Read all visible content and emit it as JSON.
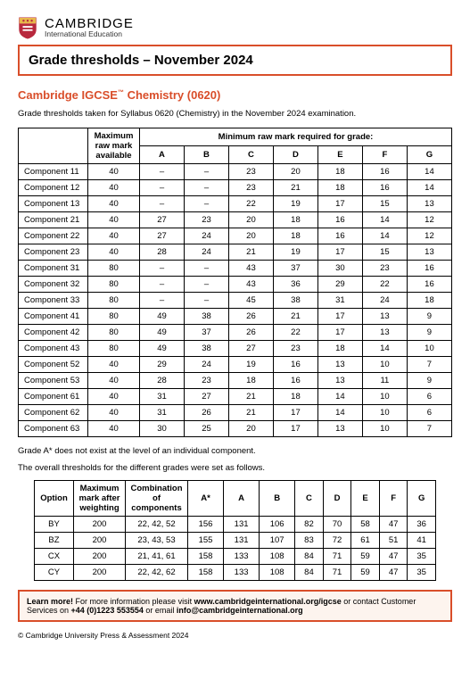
{
  "logo": {
    "main": "CAMBRIDGE",
    "sub": "International Education"
  },
  "title": "Grade thresholds – November 2024",
  "subject": {
    "prefix": "Cambridge IGCSE",
    "tm": "™",
    "name": " Chemistry (0620)"
  },
  "intro": "Grade thresholds taken for Syllabus 0620 (Chemistry) in the November 2024 examination.",
  "table1": {
    "spanHeader": "Minimum raw mark required for grade:",
    "maxHeader": "Maximum raw mark available",
    "gradeCols": [
      "A",
      "B",
      "C",
      "D",
      "E",
      "F",
      "G"
    ],
    "rows": [
      {
        "name": "Component 11",
        "max": 40,
        "v": [
          "–",
          "–",
          "23",
          "20",
          "18",
          "16",
          "14"
        ]
      },
      {
        "name": "Component 12",
        "max": 40,
        "v": [
          "–",
          "–",
          "23",
          "21",
          "18",
          "16",
          "14"
        ]
      },
      {
        "name": "Component 13",
        "max": 40,
        "v": [
          "–",
          "–",
          "22",
          "19",
          "17",
          "15",
          "13"
        ]
      },
      {
        "name": "Component 21",
        "max": 40,
        "v": [
          "27",
          "23",
          "20",
          "18",
          "16",
          "14",
          "12"
        ]
      },
      {
        "name": "Component 22",
        "max": 40,
        "v": [
          "27",
          "24",
          "20",
          "18",
          "16",
          "14",
          "12"
        ]
      },
      {
        "name": "Component 23",
        "max": 40,
        "v": [
          "28",
          "24",
          "21",
          "19",
          "17",
          "15",
          "13"
        ]
      },
      {
        "name": "Component 31",
        "max": 80,
        "v": [
          "–",
          "–",
          "43",
          "37",
          "30",
          "23",
          "16"
        ]
      },
      {
        "name": "Component 32",
        "max": 80,
        "v": [
          "–",
          "–",
          "43",
          "36",
          "29",
          "22",
          "16"
        ]
      },
      {
        "name": "Component 33",
        "max": 80,
        "v": [
          "–",
          "–",
          "45",
          "38",
          "31",
          "24",
          "18"
        ]
      },
      {
        "name": "Component 41",
        "max": 80,
        "v": [
          "49",
          "38",
          "26",
          "21",
          "17",
          "13",
          "9"
        ]
      },
      {
        "name": "Component 42",
        "max": 80,
        "v": [
          "49",
          "37",
          "26",
          "22",
          "17",
          "13",
          "9"
        ]
      },
      {
        "name": "Component 43",
        "max": 80,
        "v": [
          "49",
          "38",
          "27",
          "23",
          "18",
          "14",
          "10"
        ]
      },
      {
        "name": "Component 52",
        "max": 40,
        "v": [
          "29",
          "24",
          "19",
          "16",
          "13",
          "10",
          "7"
        ]
      },
      {
        "name": "Component 53",
        "max": 40,
        "v": [
          "28",
          "23",
          "18",
          "16",
          "13",
          "11",
          "9"
        ]
      },
      {
        "name": "Component 61",
        "max": 40,
        "v": [
          "31",
          "27",
          "21",
          "18",
          "14",
          "10",
          "6"
        ]
      },
      {
        "name": "Component 62",
        "max": 40,
        "v": [
          "31",
          "26",
          "21",
          "17",
          "14",
          "10",
          "6"
        ]
      },
      {
        "name": "Component 63",
        "max": 40,
        "v": [
          "30",
          "25",
          "20",
          "17",
          "13",
          "10",
          "7"
        ]
      }
    ]
  },
  "note1": "Grade A* does not exist at the level of an individual component.",
  "note2": "The overall thresholds for the different grades were set as follows.",
  "table2": {
    "headers": [
      "Option",
      "Maximum mark after weighting",
      "Combination of components",
      "A*",
      "A",
      "B",
      "C",
      "D",
      "E",
      "F",
      "G"
    ],
    "rows": [
      {
        "opt": "BY",
        "max": 200,
        "combo": "22, 42, 52",
        "v": [
          "156",
          "131",
          "106",
          "82",
          "70",
          "58",
          "47",
          "36"
        ]
      },
      {
        "opt": "BZ",
        "max": 200,
        "combo": "23, 43, 53",
        "v": [
          "155",
          "131",
          "107",
          "83",
          "72",
          "61",
          "51",
          "41"
        ]
      },
      {
        "opt": "CX",
        "max": 200,
        "combo": "21, 41, 61",
        "v": [
          "158",
          "133",
          "108",
          "84",
          "71",
          "59",
          "47",
          "35"
        ]
      },
      {
        "opt": "CY",
        "max": 200,
        "combo": "22, 42, 62",
        "v": [
          "158",
          "133",
          "108",
          "84",
          "71",
          "59",
          "47",
          "35"
        ]
      }
    ]
  },
  "footer": {
    "learn": "Learn more!",
    "t1": " For more information please visit ",
    "url": "www.cambridgeinternational.org/igcse",
    "t2": " or contact Customer Services on ",
    "phone": "+44 (0)1223 553554",
    "t3": " or email ",
    "email": "info@cambridgeinternational.org"
  },
  "copyright": "© Cambridge University Press & Assessment 2024"
}
